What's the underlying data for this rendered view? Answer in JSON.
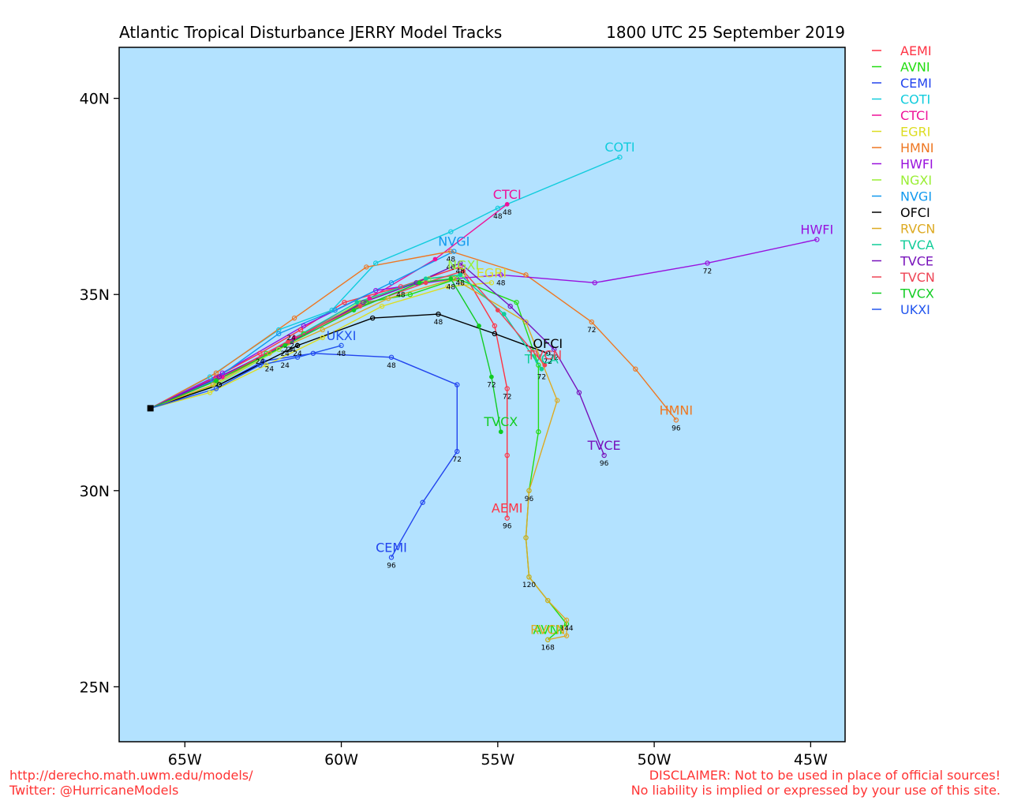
{
  "header": {
    "title": "Atlantic Tropical Disturbance JERRY Model Tracks",
    "datetime": "1800 UTC 25 September 2019"
  },
  "footer": {
    "url": "http://derecho.math.uwm.edu/models/",
    "twitter": "Twitter: @HurricaneModels",
    "disclaimer1": "DISCLAIMER: Not to be used in place of official sources!",
    "disclaimer2": "No liability is implied or expressed by your use of this site."
  },
  "chart_data": {
    "type": "scatter",
    "title": "Atlantic Tropical Disturbance JERRY Model Tracks",
    "subtitle": "1800 UTC 25 September 2019",
    "xlim": [
      -67.1,
      -43.9
    ],
    "ylim": [
      23.6,
      41.3
    ],
    "x_ticks": [
      -65,
      -60,
      -55,
      -50,
      -45
    ],
    "x_tick_labels": [
      "65W",
      "60W",
      "55W",
      "50W",
      "45W"
    ],
    "y_ticks": [
      25,
      30,
      35,
      40
    ],
    "y_tick_labels": [
      "25N",
      "30N",
      "35N",
      "40N"
    ],
    "background_color": "#b3e2ff",
    "legend_position": "right",
    "origin": {
      "lon": -66.1,
      "lat": 32.1
    },
    "series": [
      {
        "name": "AEMI",
        "color": "#ff3344",
        "marker": "open",
        "label": "AEMI",
        "points": [
          [
            -66.1,
            32.1
          ],
          [
            -64.0,
            32.9
          ],
          [
            -62.6,
            33.5
          ],
          [
            -61.3,
            34.1
          ],
          [
            -59.9,
            34.8
          ],
          [
            -58.1,
            35.2
          ],
          [
            -56.2,
            35.7
          ],
          [
            -55.1,
            34.2
          ],
          [
            -54.7,
            32.6
          ],
          [
            -54.7,
            30.9
          ],
          [
            -54.7,
            29.3
          ]
        ],
        "hour_labels": [
          {
            "lon": -62.6,
            "lat": 33.5,
            "text": "24"
          },
          {
            "lon": -58.1,
            "lat": 35.2,
            "text": "48"
          },
          {
            "lon": -54.7,
            "lat": 32.6,
            "text": "72"
          },
          {
            "lon": -54.7,
            "lat": 29.3,
            "text": "96"
          }
        ]
      },
      {
        "name": "AVNI",
        "color": "#22dd11",
        "marker": "open",
        "label": "AVNI",
        "points": [
          [
            -66.1,
            32.1
          ],
          [
            -64.0,
            32.8
          ],
          [
            -62.4,
            33.5
          ],
          [
            -61.2,
            34.0
          ],
          [
            -59.2,
            34.8
          ],
          [
            -57.8,
            35.0
          ],
          [
            -56.3,
            35.4
          ],
          [
            -54.4,
            34.8
          ],
          [
            -53.7,
            33.2
          ],
          [
            -53.7,
            31.5
          ],
          [
            -54.0,
            30.0
          ],
          [
            -54.1,
            28.8
          ],
          [
            -54.0,
            27.8
          ],
          [
            -53.4,
            27.2
          ],
          [
            -52.8,
            26.6
          ],
          [
            -53.4,
            26.2
          ]
        ],
        "hour_labels": []
      },
      {
        "name": "CEMI",
        "color": "#2244ee",
        "marker": "open",
        "label": "CEMI",
        "points": [
          [
            -66.1,
            32.1
          ],
          [
            -63.9,
            32.7
          ],
          [
            -62.5,
            33.3
          ],
          [
            -60.9,
            33.5
          ],
          [
            -58.4,
            33.4
          ],
          [
            -56.3,
            32.7
          ],
          [
            -56.3,
            31.0
          ],
          [
            -57.4,
            29.7
          ],
          [
            -58.4,
            28.3
          ]
        ],
        "hour_labels": [
          {
            "lon": -62.3,
            "lat": 33.3,
            "text": "24"
          },
          {
            "lon": -58.4,
            "lat": 33.4,
            "text": "48"
          },
          {
            "lon": -56.3,
            "lat": 31.0,
            "text": "72"
          },
          {
            "lon": -58.4,
            "lat": 28.3,
            "text": "96"
          }
        ]
      },
      {
        "name": "COTI",
        "color": "#11ccdd",
        "marker": "open",
        "label": "COTI",
        "points": [
          [
            -66.1,
            32.1
          ],
          [
            -64.2,
            32.9
          ],
          [
            -62.0,
            34.1
          ],
          [
            -60.3,
            34.6
          ],
          [
            -58.9,
            35.8
          ],
          [
            -56.5,
            36.6
          ],
          [
            -55.0,
            37.2
          ],
          [
            -51.1,
            38.5
          ]
        ],
        "hour_labels": [
          {
            "lon": -55.0,
            "lat": 37.2,
            "text": "48"
          }
        ]
      },
      {
        "name": "CTCI",
        "color": "#ee1199",
        "marker": "filled",
        "label": "CTCI",
        "points": [
          [
            -66.1,
            32.1
          ],
          [
            -63.8,
            32.9
          ],
          [
            -61.5,
            33.9
          ],
          [
            -59.1,
            34.9
          ],
          [
            -57.0,
            35.9
          ],
          [
            -54.7,
            37.3
          ]
        ],
        "hour_labels": [
          {
            "lon": -61.5,
            "lat": 33.9,
            "text": "24"
          },
          {
            "lon": -54.7,
            "lat": 37.3,
            "text": "48"
          }
        ]
      },
      {
        "name": "EGRI",
        "color": "#dddd22",
        "marker": "open",
        "label": "EGRI",
        "points": [
          [
            -66.1,
            32.1
          ],
          [
            -64.2,
            32.5
          ],
          [
            -62.4,
            33.2
          ],
          [
            -60.6,
            33.9
          ],
          [
            -58.7,
            34.7
          ],
          [
            -56.6,
            35.2
          ],
          [
            -55.2,
            35.3
          ]
        ],
        "hour_labels": []
      },
      {
        "name": "HMNI",
        "color": "#ee7722",
        "marker": "open",
        "label": "HMNI",
        "points": [
          [
            -66.1,
            32.1
          ],
          [
            -64.0,
            33.0
          ],
          [
            -61.5,
            34.4
          ],
          [
            -59.2,
            35.7
          ],
          [
            -56.5,
            36.1
          ],
          [
            -54.1,
            35.5
          ],
          [
            -52.0,
            34.3
          ],
          [
            -50.6,
            33.1
          ],
          [
            -49.3,
            31.8
          ]
        ],
        "hour_labels": [
          {
            "lon": -61.6,
            "lat": 34.1,
            "text": "24"
          },
          {
            "lon": -56.5,
            "lat": 36.1,
            "text": "48"
          },
          {
            "lon": -52.0,
            "lat": 34.3,
            "text": "72"
          },
          {
            "lon": -49.3,
            "lat": 31.8,
            "text": "96"
          }
        ]
      },
      {
        "name": "HWFI",
        "color": "#9911dd",
        "marker": "open",
        "label": "HWFI",
        "points": [
          [
            -66.1,
            32.1
          ],
          [
            -63.8,
            33.0
          ],
          [
            -61.2,
            34.2
          ],
          [
            -58.9,
            35.1
          ],
          [
            -56.4,
            35.4
          ],
          [
            -54.9,
            35.5
          ],
          [
            -51.9,
            35.3
          ],
          [
            -48.3,
            35.8
          ],
          [
            -44.8,
            36.4
          ]
        ],
        "hour_labels": [
          {
            "lon": -54.9,
            "lat": 35.5,
            "text": "48"
          },
          {
            "lon": -48.3,
            "lat": 35.8,
            "text": "72"
          }
        ]
      },
      {
        "name": "NGXI",
        "color": "#99ee33",
        "marker": "open",
        "label": "NGXI",
        "points": [
          [
            -66.1,
            32.1
          ],
          [
            -64.0,
            32.7
          ],
          [
            -62.0,
            33.6
          ],
          [
            -59.4,
            34.8
          ],
          [
            -57.2,
            35.4
          ],
          [
            -56.1,
            35.5
          ]
        ],
        "hour_labels": []
      },
      {
        "name": "NVGI",
        "color": "#1199ee",
        "marker": "open",
        "label": "NVGI",
        "points": [
          [
            -66.1,
            32.1
          ],
          [
            -64.1,
            32.8
          ],
          [
            -62.0,
            34.0
          ],
          [
            -60.2,
            34.6
          ],
          [
            -58.4,
            35.3
          ],
          [
            -56.4,
            36.1
          ]
        ],
        "hour_labels": [
          {
            "lon": -56.5,
            "lat": 35.9,
            "text": "48"
          }
        ]
      },
      {
        "name": "OFCI",
        "color": "#000000",
        "marker": "open",
        "label": "OFCI",
        "points": [
          [
            -66.1,
            32.1
          ],
          [
            -63.9,
            32.7
          ],
          [
            -61.4,
            33.7
          ],
          [
            -59.0,
            34.4
          ],
          [
            -56.9,
            34.5
          ],
          [
            -55.1,
            34.0
          ],
          [
            -53.4,
            33.5
          ]
        ],
        "hour_labels": [
          {
            "lon": -61.4,
            "lat": 33.7,
            "text": "24"
          },
          {
            "lon": -56.9,
            "lat": 34.5,
            "text": "48"
          },
          {
            "lon": -53.4,
            "lat": 33.5,
            "text": "72"
          }
        ]
      },
      {
        "name": "RVCN",
        "color": "#ddaa22",
        "marker": "open",
        "label": "RVCN",
        "points": [
          [
            -66.1,
            32.1
          ],
          [
            -64.1,
            32.7
          ],
          [
            -62.3,
            33.5
          ],
          [
            -60.6,
            34.1
          ],
          [
            -58.5,
            34.9
          ],
          [
            -56.4,
            35.4
          ],
          [
            -54.1,
            34.3
          ],
          [
            -53.1,
            32.3
          ],
          [
            -54.0,
            30.0
          ],
          [
            -54.1,
            28.8
          ],
          [
            -54.0,
            27.8
          ],
          [
            -53.4,
            27.2
          ],
          [
            -52.8,
            26.7
          ],
          [
            -52.8,
            26.3
          ],
          [
            -53.4,
            26.2
          ]
        ],
        "hour_labels": [
          {
            "lon": -54.0,
            "lat": 30.0,
            "text": "96"
          },
          {
            "lon": -54.0,
            "lat": 27.8,
            "text": "120"
          },
          {
            "lon": -52.8,
            "lat": 26.7,
            "text": "144"
          },
          {
            "lon": -53.4,
            "lat": 26.2,
            "text": "168"
          }
        ]
      },
      {
        "name": "TVCA",
        "color": "#11cc99",
        "marker": "filled",
        "label": "TVCA",
        "points": [
          [
            -66.1,
            32.1
          ],
          [
            -64.0,
            32.8
          ],
          [
            -61.7,
            33.8
          ],
          [
            -59.5,
            34.8
          ],
          [
            -57.3,
            35.4
          ],
          [
            -56.2,
            35.5
          ],
          [
            -54.8,
            34.5
          ],
          [
            -53.6,
            33.1
          ]
        ],
        "hour_labels": [
          {
            "lon": -61.7,
            "lat": 33.8,
            "text": "24"
          },
          {
            "lon": -56.2,
            "lat": 35.5,
            "text": "48"
          },
          {
            "lon": -53.6,
            "lat": 33.1,
            "text": "72"
          }
        ]
      },
      {
        "name": "TVCE",
        "color": "#7711bb",
        "marker": "open",
        "label": "TVCE",
        "points": [
          [
            -66.1,
            32.1
          ],
          [
            -63.9,
            32.9
          ],
          [
            -61.6,
            33.8
          ],
          [
            -59.3,
            34.8
          ],
          [
            -57.6,
            35.3
          ],
          [
            -56.2,
            35.8
          ],
          [
            -54.6,
            34.7
          ],
          [
            -53.2,
            33.6
          ],
          [
            -52.4,
            32.5
          ],
          [
            -51.6,
            30.9
          ]
        ],
        "hour_labels": [
          {
            "lon": -61.6,
            "lat": 33.8,
            "text": "24"
          },
          {
            "lon": -56.2,
            "lat": 35.8,
            "text": "48"
          },
          {
            "lon": -53.2,
            "lat": 33.6,
            "text": "72"
          },
          {
            "lon": -51.6,
            "lat": 30.9,
            "text": "96"
          }
        ]
      },
      {
        "name": "TVCN",
        "color": "#ee4455",
        "marker": "filled",
        "label": "TVCN",
        "points": [
          [
            -66.1,
            32.1
          ],
          [
            -64.0,
            32.8
          ],
          [
            -61.7,
            33.8
          ],
          [
            -59.4,
            34.7
          ],
          [
            -57.3,
            35.3
          ],
          [
            -56.1,
            35.6
          ],
          [
            -55.0,
            34.6
          ],
          [
            -53.5,
            33.2
          ]
        ],
        "hour_labels": []
      },
      {
        "name": "TVCX",
        "color": "#11cc22",
        "marker": "filled",
        "label": "TVCX",
        "points": [
          [
            -66.1,
            32.1
          ],
          [
            -64.0,
            32.8
          ],
          [
            -61.8,
            33.7
          ],
          [
            -59.6,
            34.6
          ],
          [
            -57.5,
            35.3
          ],
          [
            -56.5,
            35.4
          ],
          [
            -55.6,
            34.2
          ],
          [
            -55.2,
            32.9
          ],
          [
            -54.9,
            31.5
          ]
        ],
        "hour_labels": [
          {
            "lon": -61.8,
            "lat": 33.7,
            "text": "24"
          },
          {
            "lon": -56.5,
            "lat": 35.4,
            "text": "48"
          },
          {
            "lon": -55.2,
            "lat": 32.9,
            "text": "72"
          }
        ]
      },
      {
        "name": "UKXI",
        "color": "#2255ee",
        "marker": "open",
        "label": "UKXI",
        "points": [
          [
            -66.1,
            32.1
          ],
          [
            -64.0,
            32.6
          ],
          [
            -62.6,
            33.2
          ],
          [
            -61.4,
            33.4
          ],
          [
            -60.0,
            33.7
          ]
        ],
        "hour_labels": [
          {
            "lon": -61.8,
            "lat": 33.4,
            "text": "24"
          },
          {
            "lon": -60.0,
            "lat": 33.7,
            "text": "48"
          }
        ]
      }
    ],
    "legend": {
      "items": [
        "AEMI",
        "AVNI",
        "CEMI",
        "COTI",
        "CTCI",
        "EGRI",
        "HMNI",
        "HWFI",
        "NGXI",
        "NVGI",
        "OFCI",
        "RVCN",
        "TVCA",
        "TVCE",
        "TVCN",
        "TVCX",
        "UKXI"
      ]
    }
  }
}
